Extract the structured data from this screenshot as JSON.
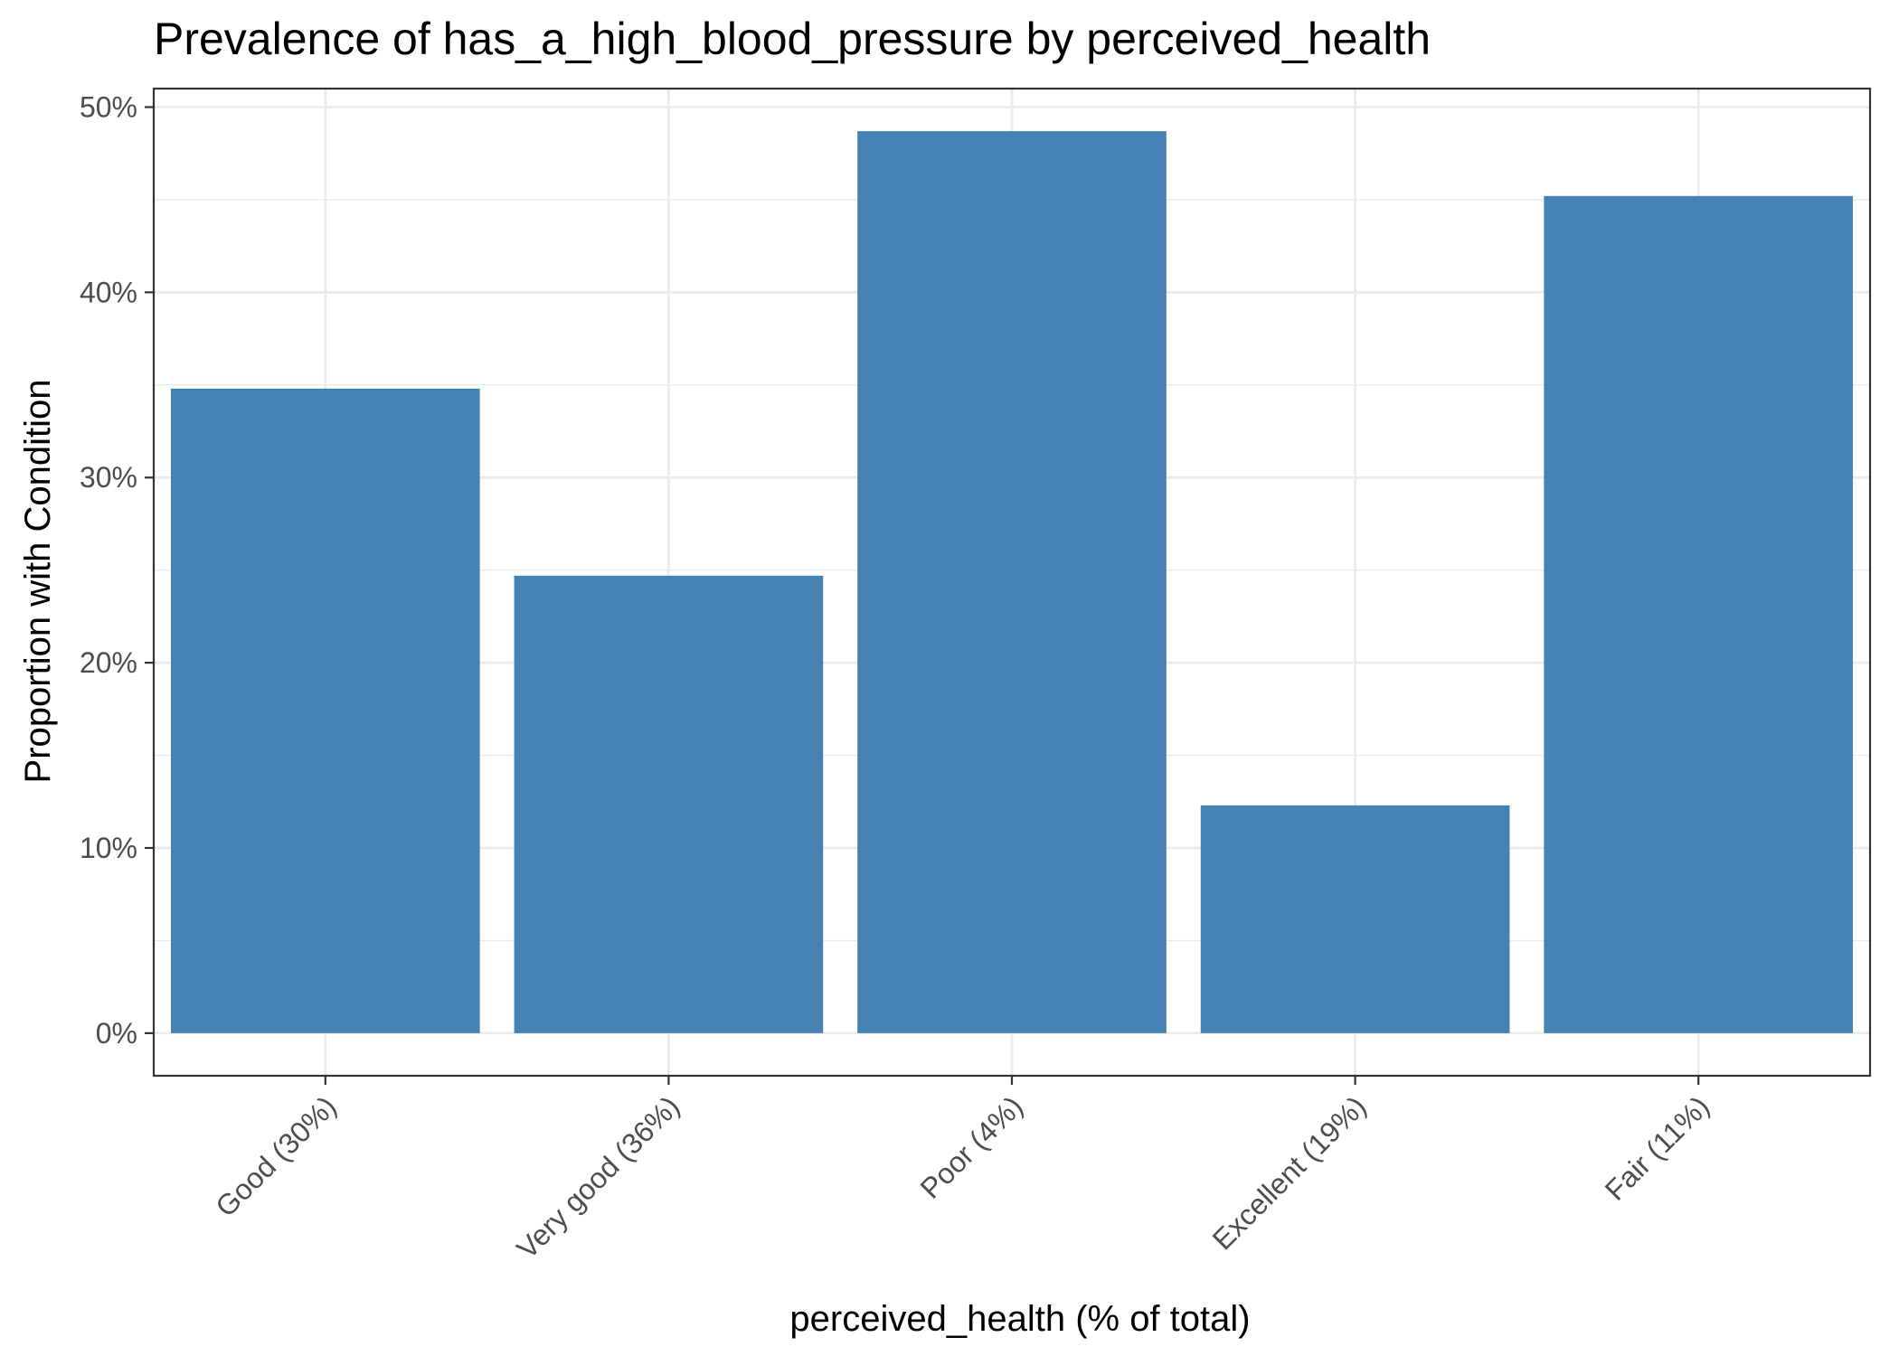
{
  "chart_data": {
    "type": "bar",
    "title": "Prevalence of has_a_high_blood_pressure by perceived_health",
    "xlabel": "perceived_health (% of total)",
    "ylabel": "Proportion with Condition",
    "categories": [
      "Good (30%)",
      "Very good (36%)",
      "Poor (4%)",
      "Excellent (19%)",
      "Fair (11%)"
    ],
    "values": [
      0.348,
      0.247,
      0.487,
      0.123,
      0.452
    ],
    "ylim": [
      -0.023,
      0.51
    ],
    "yticks": [
      0,
      0.1,
      0.2,
      0.3,
      0.4,
      0.5
    ],
    "ytick_labels": [
      "0%",
      "10%",
      "20%",
      "30%",
      "40%",
      "50%"
    ],
    "grid": true,
    "bar_color": "#4682B4",
    "grid_color": "#EBEBEB",
    "panel_border_color": "#333333"
  }
}
